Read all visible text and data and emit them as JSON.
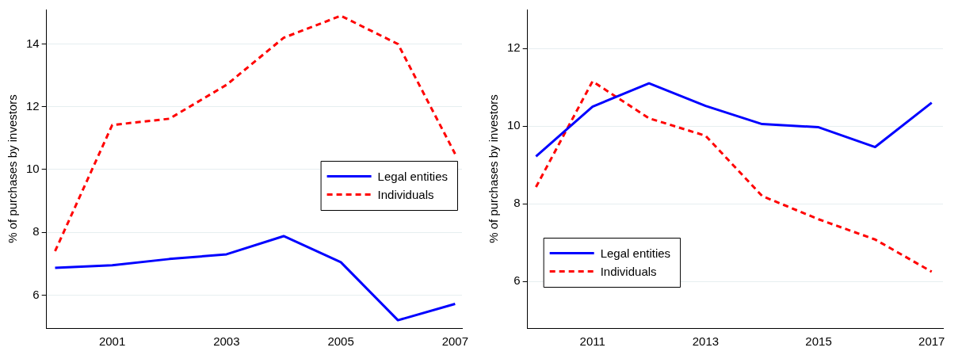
{
  "chart_data": [
    {
      "type": "line",
      "ylabel": "% of purchases by investors",
      "xlim": [
        1999.85,
        2007.12
      ],
      "xticks": [
        2001,
        2003,
        2005,
        2007
      ],
      "ylim": [
        4.95,
        15.1
      ],
      "yticks": [
        6,
        8,
        10,
        12,
        14
      ],
      "grid": "y",
      "legend": "right",
      "marker": "none",
      "series": [
        {
          "name": "Legal entities",
          "color": "#0000ff",
          "line_style": "solid",
          "x": [
            2000,
            2001,
            2002,
            2003,
            2004,
            2005,
            2006,
            2007
          ],
          "values": [
            6.87,
            6.95,
            7.15,
            7.3,
            7.88,
            7.05,
            5.2,
            5.72
          ]
        },
        {
          "name": "Individuals",
          "color": "#ff0000",
          "line_style": "dashed",
          "x": [
            2000,
            2001,
            2002,
            2003,
            2004,
            2005,
            2006,
            2007
          ],
          "values": [
            7.4,
            11.42,
            11.62,
            12.7,
            14.2,
            14.9,
            14.0,
            10.5
          ]
        }
      ]
    },
    {
      "type": "line",
      "ylabel": "% of purchases by investors",
      "xlim": [
        2009.85,
        2017.2
      ],
      "xticks": [
        2011,
        2013,
        2015,
        2017
      ],
      "ylim": [
        4.8,
        13
      ],
      "yticks": [
        6,
        8,
        10,
        12
      ],
      "grid": "y",
      "legend": "bottom left",
      "marker": "none",
      "series": [
        {
          "name": "Legal entities",
          "color": "#0000ff",
          "line_style": "solid",
          "x": [
            2010,
            2011,
            2012,
            2013,
            2014,
            2015,
            2016,
            2017
          ],
          "values": [
            9.22,
            10.5,
            11.1,
            10.52,
            10.05,
            9.97,
            9.46,
            10.6
          ]
        },
        {
          "name": "Individuals",
          "color": "#ff0000",
          "line_style": "dashed",
          "x": [
            2010,
            2011,
            2012,
            2013,
            2014,
            2015,
            2016,
            2017
          ],
          "values": [
            8.43,
            11.15,
            10.2,
            9.75,
            8.2,
            7.6,
            7.08,
            6.25
          ]
        }
      ]
    }
  ]
}
